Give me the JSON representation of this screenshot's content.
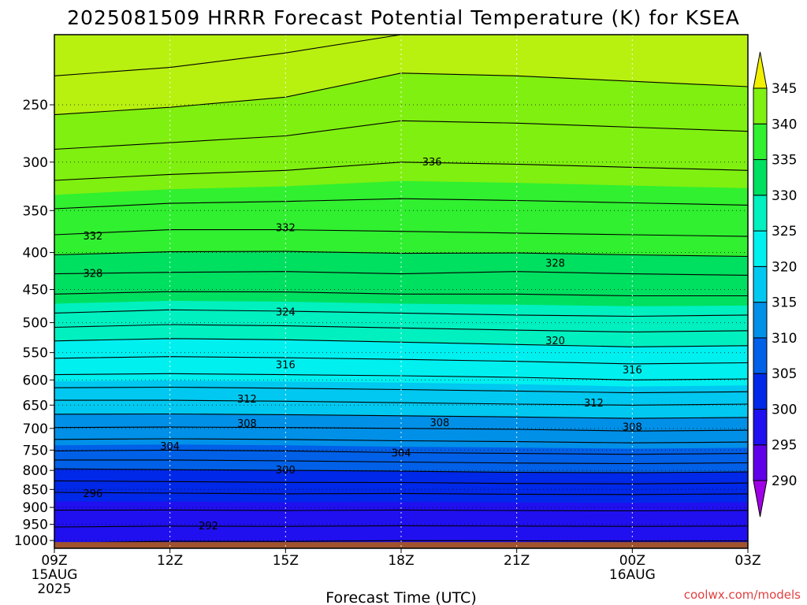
{
  "chart_data": {
    "type": "heatmap",
    "title": "2025081509 HRRR Forecast Potential Temperature (K) for KSEA",
    "xlabel": "Forecast Time (UTC)",
    "ylabel": "",
    "x_ticks": [
      {
        "hour": 0,
        "label": "09Z",
        "sub": [
          "15AUG",
          "2025"
        ]
      },
      {
        "hour": 3,
        "label": "12Z",
        "sub": []
      },
      {
        "hour": 6,
        "label": "15Z",
        "sub": []
      },
      {
        "hour": 9,
        "label": "18Z",
        "sub": []
      },
      {
        "hour": 12,
        "label": "21Z",
        "sub": []
      },
      {
        "hour": 15,
        "label": "00Z",
        "sub": [
          "16AUG"
        ]
      },
      {
        "hour": 18,
        "label": "03Z",
        "sub": []
      }
    ],
    "xlim_hours": [
      0,
      18
    ],
    "y_ticks": [
      250,
      300,
      350,
      400,
      450,
      500,
      550,
      600,
      650,
      700,
      750,
      800,
      850,
      900,
      950,
      1000
    ],
    "y_scale": "log",
    "y_inverted": true,
    "ylim_hPa": [
      1025,
      200
    ],
    "grid": "dotted",
    "surface_fill_color": "#a0522d",
    "colorbar": {
      "levels": [
        290,
        295,
        300,
        305,
        310,
        315,
        320,
        325,
        330,
        335,
        340,
        345
      ],
      "labels": [
        "290",
        "295",
        "300",
        "305",
        "310",
        "315",
        "320",
        "325",
        "330",
        "335",
        "340",
        "345"
      ],
      "extend": "both",
      "colors": [
        "#a000e6",
        "#6000e8",
        "#2010f0",
        "#0028e8",
        "#0060e8",
        "#0090e8",
        "#00c8f0",
        "#00f0f0",
        "#00f0c0",
        "#00e060",
        "#30f030",
        "#80f010",
        "#b8f010",
        "#f0f000"
      ],
      "placement": "right"
    },
    "series": [
      {
        "hours": [
          0,
          3,
          6,
          9,
          12,
          15,
          18
        ],
        "isentropes_hPa": {
          "292": [
            958,
            955,
            956,
            954,
            955,
            956,
            955
          ],
          "296": [
            858,
            860,
            862,
            861,
            863,
            864,
            862
          ],
          "300": [
            796,
            798,
            800,
            802,
            805,
            806,
            804
          ],
          "304": [
            752,
            750,
            752,
            756,
            758,
            760,
            758
          ],
          "308": [
            698,
            697,
            698,
            700,
            702,
            706,
            704
          ],
          "312": [
            640,
            640,
            642,
            645,
            648,
            650,
            648
          ],
          "316": [
            590,
            588,
            590,
            592,
            595,
            600,
            598
          ],
          "320": [
            530,
            526,
            528,
            532,
            536,
            540,
            538
          ],
          "324": [
            485,
            480,
            482,
            485,
            488,
            490,
            488
          ],
          "328": [
            428,
            426,
            425,
            428,
            425,
            428,
            430
          ],
          "332": [
            378,
            372,
            372,
            374,
            376,
            378,
            380
          ],
          "336": [
            318,
            312,
            308,
            300,
            302,
            305,
            308
          ]
        }
      }
    ],
    "contour_labels": [
      {
        "value": "336",
        "hour": 9.8,
        "hPa": 300
      },
      {
        "value": "332",
        "hour": 1.0,
        "hPa": 380
      },
      {
        "value": "332",
        "hour": 6.0,
        "hPa": 370
      },
      {
        "value": "328",
        "hour": 1.0,
        "hPa": 428
      },
      {
        "value": "328",
        "hour": 13.0,
        "hPa": 414
      },
      {
        "value": "324",
        "hour": 6.0,
        "hPa": 484
      },
      {
        "value": "320",
        "hour": 13.0,
        "hPa": 530
      },
      {
        "value": "316",
        "hour": 6.0,
        "hPa": 572
      },
      {
        "value": "316",
        "hour": 15.0,
        "hPa": 582
      },
      {
        "value": "312",
        "hour": 5.0,
        "hPa": 638
      },
      {
        "value": "312",
        "hour": 14.0,
        "hPa": 646
      },
      {
        "value": "308",
        "hour": 5.0,
        "hPa": 690
      },
      {
        "value": "308",
        "hour": 10.0,
        "hPa": 688
      },
      {
        "value": "308",
        "hour": 15.0,
        "hPa": 698
      },
      {
        "value": "304",
        "hour": 3.0,
        "hPa": 742
      },
      {
        "value": "304",
        "hour": 9.0,
        "hPa": 758
      },
      {
        "value": "300",
        "hour": 6.0,
        "hPa": 800
      },
      {
        "value": "296",
        "hour": 1.0,
        "hPa": 862
      },
      {
        "value": "292",
        "hour": 4.0,
        "hPa": 955
      }
    ]
  },
  "credit": "coolwx.com/models"
}
